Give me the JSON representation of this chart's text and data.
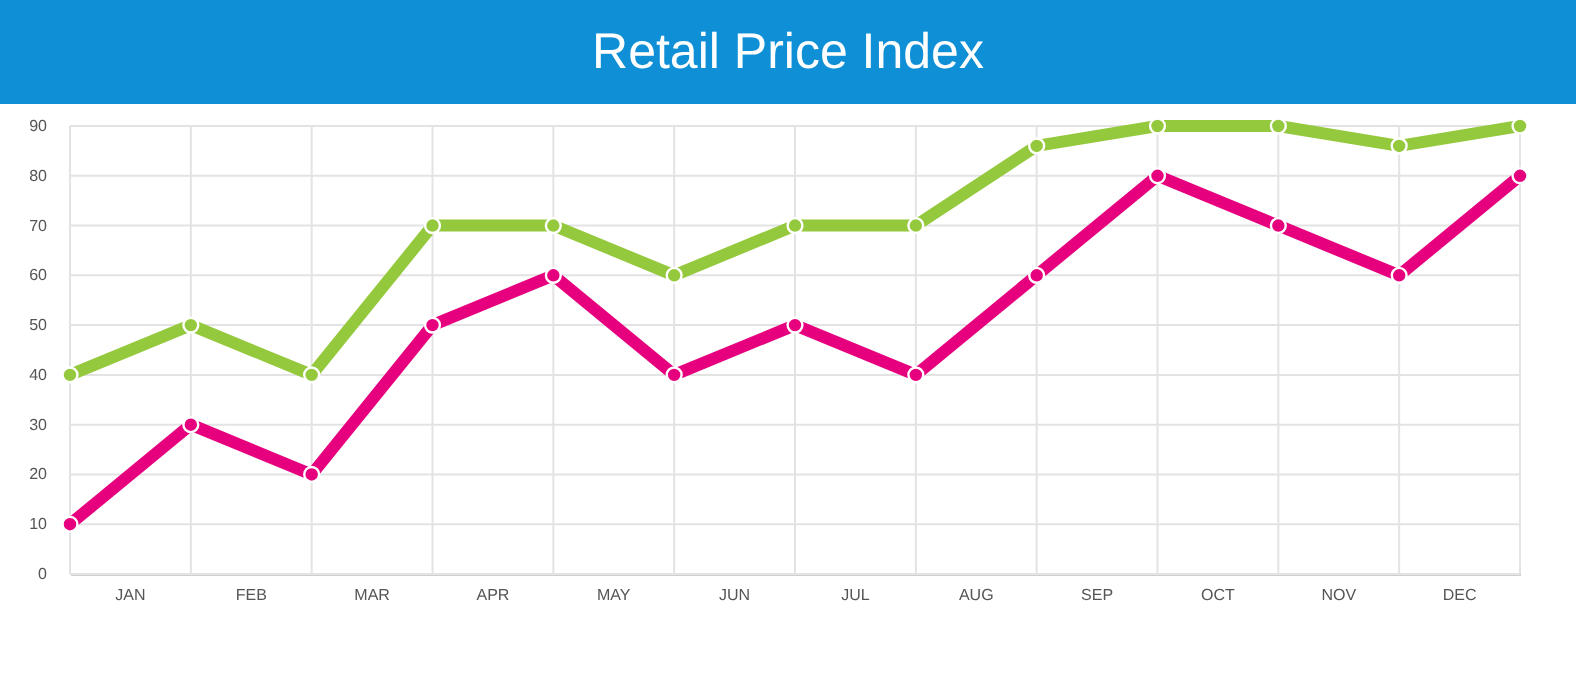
{
  "chart_data": {
    "type": "line",
    "title": "Retail Price Index",
    "categories": [
      null,
      null,
      null,
      null,
      null,
      null,
      null,
      null,
      null,
      null,
      null,
      null,
      null
    ],
    "series": [
      {
        "color": "#95c93d",
        "values": [
          40,
          50,
          40,
          70,
          70,
          60,
          70,
          70,
          86,
          90,
          90,
          86,
          90
        ]
      },
      {
        "color": "#e6007e",
        "values": [
          10,
          30,
          20,
          50,
          60,
          40,
          50,
          40,
          60,
          80,
          70,
          60,
          80
        ]
      }
    ],
    "annotations": [
      "JAN",
      "FEB",
      "MAR",
      "APR",
      "MAY",
      "JUN",
      "JUL",
      "AUG",
      "SEP",
      "OCT",
      "NOV",
      "DEC"
    ],
    "ylim": [
      0,
      90
    ],
    "yticks": [
      0,
      10,
      20,
      30,
      40,
      50,
      60,
      70,
      80,
      90
    ],
    "grid": true,
    "marker": "circle",
    "line_style": "solid"
  }
}
